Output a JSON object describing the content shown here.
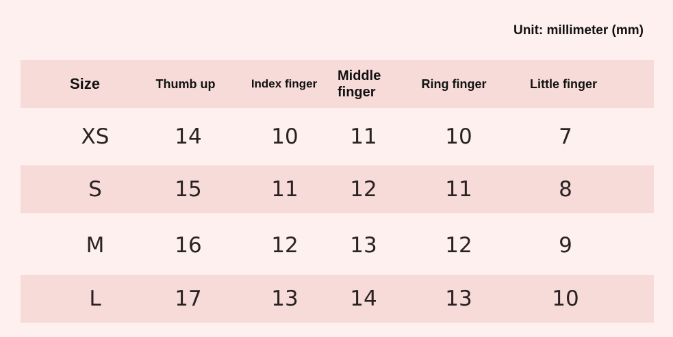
{
  "unit_label": "Unit: millimeter (mm)",
  "colors": {
    "background": "#fdf0ee",
    "band": "#f6dbd8"
  },
  "table": {
    "headers": [
      "Size",
      "Thumb up",
      "Index finger",
      "Middle finger",
      "Ring finger",
      "Little finger"
    ],
    "rows": [
      [
        "XS",
        "14",
        "10",
        "11",
        "10",
        "7"
      ],
      [
        "S",
        "15",
        "11",
        "12",
        "11",
        "8"
      ],
      [
        "M",
        "16",
        "12",
        "13",
        "12",
        "9"
      ],
      [
        "L",
        "17",
        "13",
        "14",
        "13",
        "10"
      ]
    ]
  }
}
